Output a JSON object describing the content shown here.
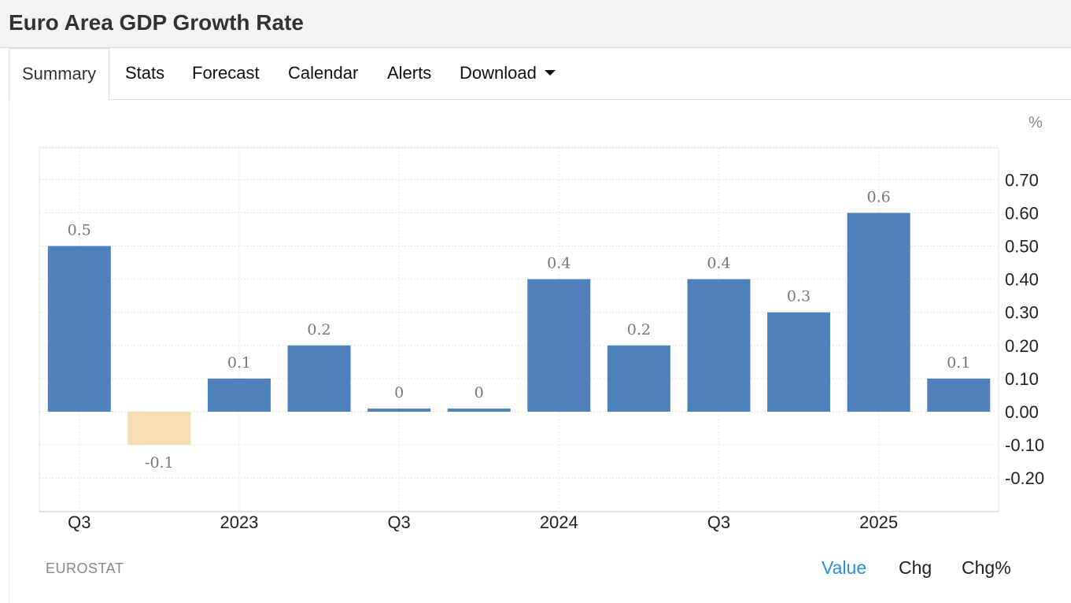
{
  "header": {
    "title": "Euro Area GDP Growth Rate"
  },
  "tabs": [
    {
      "id": "summary",
      "label": "Summary",
      "active": true
    },
    {
      "id": "stats",
      "label": "Stats"
    },
    {
      "id": "forecast",
      "label": "Forecast"
    },
    {
      "id": "calendar",
      "label": "Calendar"
    },
    {
      "id": "alerts",
      "label": "Alerts"
    },
    {
      "id": "download",
      "label": "Download"
    }
  ],
  "chart_data": {
    "type": "bar",
    "unit_label": "%",
    "categories": [
      "",
      "",
      "",
      "",
      "",
      "",
      "",
      "",
      "",
      "",
      "",
      ""
    ],
    "values": [
      0.5,
      -0.1,
      0.1,
      0.2,
      0.0,
      0.0,
      0.4,
      0.2,
      0.4,
      0.3,
      0.6,
      0.1
    ],
    "data_labels": [
      "0.5",
      "-0.1",
      "0.1",
      "0.2",
      "0",
      "0",
      "0.4",
      "0.2",
      "0.4",
      "0.3",
      "0.6",
      "0.1"
    ],
    "x_tick_labels": [
      {
        "index": 0.5,
        "label": "Q3"
      },
      {
        "index": 2.5,
        "label": "2023"
      },
      {
        "index": 4.5,
        "label": "Q3"
      },
      {
        "index": 6.5,
        "label": "2024"
      },
      {
        "index": 8.5,
        "label": "Q3"
      },
      {
        "index": 10.5,
        "label": "2025"
      }
    ],
    "y_ticks": [
      0.7,
      0.6,
      0.5,
      0.4,
      0.3,
      0.2,
      0.1,
      0.0,
      -0.1,
      -0.2
    ],
    "y_tick_labels": [
      "0.70",
      "0.60",
      "0.50",
      "0.40",
      "0.30",
      "0.20",
      "0.10",
      "0.00",
      "-0.10",
      "-0.20"
    ],
    "ylim": [
      -0.3,
      0.8
    ],
    "y_axis_position": "right",
    "grid": true,
    "colors": {
      "positive": "#4f81bd",
      "negative": "#f5deb3"
    }
  },
  "footer": {
    "source": "EUROSTAT",
    "toggles": [
      {
        "id": "value",
        "label": "Value",
        "active": true
      },
      {
        "id": "chg",
        "label": "Chg"
      },
      {
        "id": "chgpct",
        "label": "Chg%"
      }
    ]
  }
}
